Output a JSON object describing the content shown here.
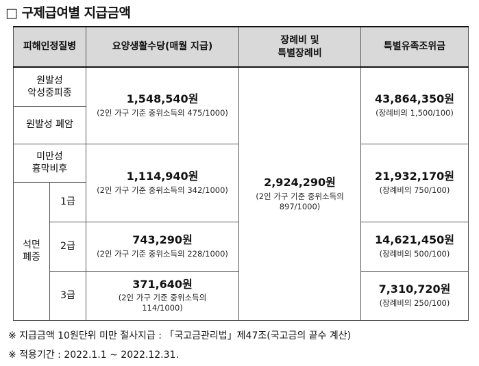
{
  "title": "□ 구제급여별 지급금액",
  "headers": {
    "col1": "피해인정질병",
    "col2": "요양생활수당(매월 지급)",
    "col3_line1": "장례비 및",
    "col3_line2": "특별장례비",
    "col4": "특별유족조위금"
  },
  "rows": {
    "r1_label_l1": "원발성",
    "r1_label_l2": "악성중피종",
    "r2_label": "원발성 폐암",
    "r3_label_l1": "미만성",
    "r3_label_l2": "흉막비후",
    "asbestosis_label_l1": "석면",
    "asbestosis_label_l2": "폐증",
    "grade1": "1급",
    "grade2": "2급",
    "grade3": "3급"
  },
  "living": {
    "a_amount": "1,548,540원",
    "a_note": "(2인 가구 기준 중위소득의 475/1000)",
    "b_amount": "1,114,940원",
    "b_note": "(2인 가구 기준 중위소득의 342/1000)",
    "c_amount": "743,290원",
    "c_note": "(2인 가구 기준 중위소득의 228/1000)",
    "d_amount": "371,640원",
    "d_note_l1": "(2인 가구 기준 중위소득의",
    "d_note_l2": "114/1000)"
  },
  "funeral": {
    "amount": "2,924,290원",
    "note_l1": "(2인 가구 기준 중위소득의",
    "note_l2": "897/1000)"
  },
  "condolence": {
    "a_amount": "43,864,350원",
    "a_note": "(장례비의 1,500/100)",
    "b_amount": "21,932,170원",
    "b_note": "(장례비의 750/100)",
    "c_amount": "14,621,450원",
    "c_note": "(장례비의 500/100)",
    "d_amount": "7,310,720원",
    "d_note": "(장례비의 250/100)"
  },
  "notes": {
    "n1": "※ 지급금액 10원단위 미만 절사지급 : 「국고금관리법」제47조(국고금의 끝수 계산)",
    "n2": "※ 적용기간 : 2022.1.1 ~ 2022.12.31."
  }
}
